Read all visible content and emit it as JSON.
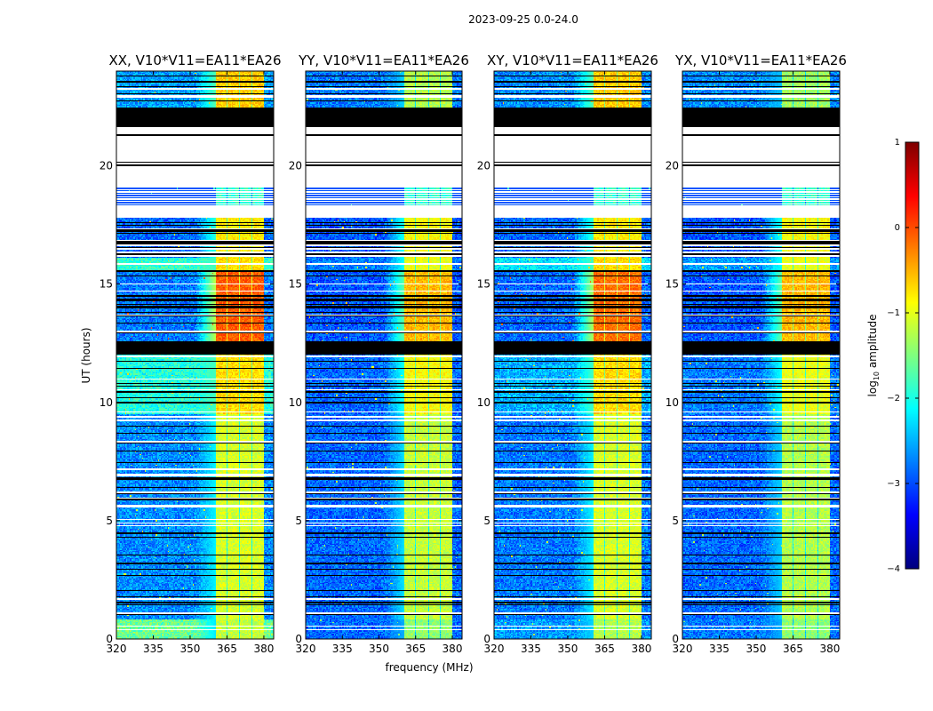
{
  "chart_data": {
    "type": "heatmap",
    "title": "2023-09-25 0.0-24.0",
    "xlabel": "frequency (MHz)",
    "ylabel": "UT (hours)",
    "xlim": [
      320,
      384
    ],
    "ylim": [
      0,
      24
    ],
    "xticks": [
      320,
      335,
      350,
      365,
      380
    ],
    "yticks": [
      0,
      5,
      10,
      15,
      20
    ],
    "panels": [
      {
        "title": "XX, V10*V11=EA11*EA26"
      },
      {
        "title": "YY, V10*V11=EA11*EA26"
      },
      {
        "title": "XY, V10*V11=EA11*EA26"
      },
      {
        "title": "YX, V10*V11=EA11*EA26"
      }
    ],
    "colorbar": {
      "label": "log10 amplitude",
      "label_main": "log",
      "label_sub": "10",
      "label_rest": " amplitude",
      "range": [
        -4,
        1
      ],
      "ticks": [
        1,
        0,
        -1,
        -2,
        -3,
        -4
      ],
      "colormap": "jet"
    },
    "signal_subbands_MHz": [
      [
        360.5,
        364.8
      ],
      [
        365.2,
        370.0
      ],
      [
        370.4,
        375.0
      ],
      [
        375.4,
        380.0
      ]
    ],
    "time_regimes": [
      {
        "t": [
          22.4,
          24.0
        ],
        "kind": "data",
        "bg": [
          -3.0,
          -3.2,
          -3.1,
          -3.1
        ],
        "band": [
          -0.8,
          -1.5,
          -0.8,
          -1.6
        ],
        "p_white": 0.08,
        "p_black": 0.2
      },
      {
        "t": [
          21.6,
          22.4
        ],
        "kind": "black"
      },
      {
        "t": [
          19.1,
          21.6
        ],
        "kind": "white"
      },
      {
        "t": [
          18.3,
          19.1
        ],
        "kind": "sparse",
        "bg": [
          -3.4,
          -3.4,
          -3.4,
          -3.4
        ],
        "band": [
          -2.2,
          -2.2,
          -2.2,
          -2.2
        ]
      },
      {
        "t": [
          17.8,
          18.3
        ],
        "kind": "white"
      },
      {
        "t": [
          16.1,
          17.8
        ],
        "kind": "data",
        "bg": [
          -3.3,
          -3.4,
          -3.3,
          -3.4
        ],
        "band": [
          -1.0,
          -1.1,
          -1.0,
          -1.1
        ],
        "p_white": 0.15,
        "p_black": 0.45
      },
      {
        "t": [
          15.5,
          16.1
        ],
        "kind": "data",
        "bg": [
          -2.2,
          -3.2,
          -2.6,
          -3.0
        ],
        "band": [
          -0.9,
          -1.2,
          -0.9,
          -1.2
        ],
        "p_white": 0.15,
        "p_black": 0.1
      },
      {
        "t": [
          12.5,
          15.5
        ],
        "kind": "data",
        "bg": [
          -3.2,
          -3.4,
          -3.3,
          -3.4
        ],
        "band": [
          -0.2,
          -0.7,
          -0.3,
          -0.7
        ],
        "p_white": 0.1,
        "p_black": 0.18
      },
      {
        "t": [
          12.0,
          12.5
        ],
        "kind": "black"
      },
      {
        "t": [
          9.5,
          12.0
        ],
        "kind": "data",
        "bg": [
          -2.3,
          -3.3,
          -2.9,
          -3.2
        ],
        "band": [
          -0.9,
          -1.1,
          -0.9,
          -1.2
        ],
        "p_white": 0.05,
        "p_black": 0.1
      },
      {
        "t": [
          0.8,
          9.5
        ],
        "kind": "data",
        "bg": [
          -3.1,
          -3.3,
          -3.2,
          -3.3
        ],
        "band": [
          -1.3,
          -1.4,
          -1.3,
          -1.5
        ],
        "p_white": 0.1,
        "p_black": 0.12
      },
      {
        "t": [
          0.0,
          0.8
        ],
        "kind": "data",
        "bg": [
          -1.9,
          -3.3,
          -3.0,
          -3.2
        ],
        "band": [
          -1.4,
          -1.7,
          -1.5,
          -1.7
        ],
        "p_white": 0.1,
        "p_black": 0.1
      }
    ]
  }
}
